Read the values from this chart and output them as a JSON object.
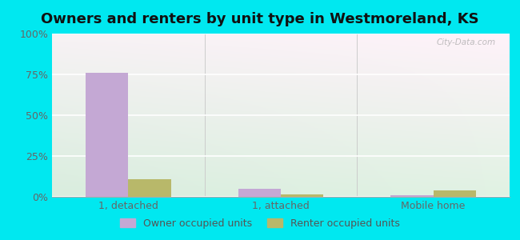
{
  "title": "Owners and renters by unit type in Westmoreland, KS",
  "categories": [
    "1, detached",
    "1, attached",
    "Mobile home"
  ],
  "owner_values": [
    76,
    5,
    1
  ],
  "renter_values": [
    11,
    1.5,
    4
  ],
  "owner_color": "#c4a8d4",
  "renter_color": "#b8b86a",
  "bar_width": 0.28,
  "ylim": [
    0,
    100
  ],
  "yticks": [
    0,
    25,
    50,
    75,
    100
  ],
  "ytick_labels": [
    "0%",
    "25%",
    "50%",
    "75%",
    "100%"
  ],
  "outer_bg_color": "#00e8f0",
  "legend_owner": "Owner occupied units",
  "legend_renter": "Renter occupied units",
  "watermark": "City-Data.com",
  "title_fontsize": 13,
  "tick_fontsize": 9,
  "legend_fontsize": 9
}
